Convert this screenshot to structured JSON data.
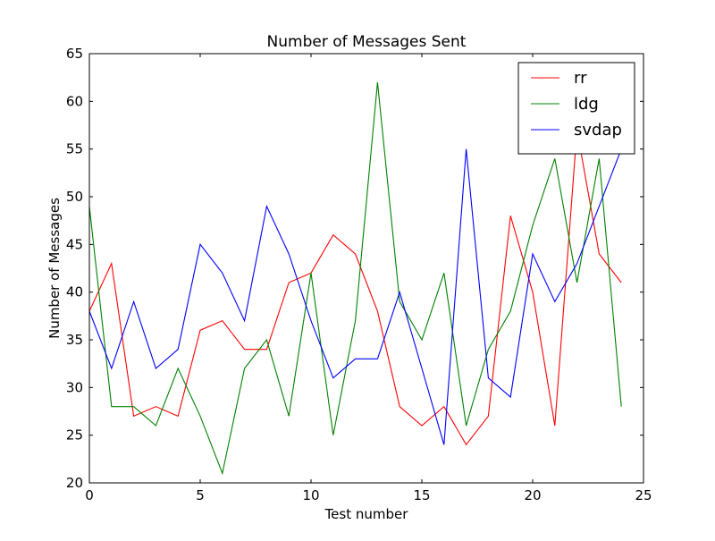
{
  "chart_data": {
    "type": "line",
    "title": "Number of Messages Sent",
    "xlabel": "Test number",
    "ylabel": "Number of Messages",
    "xlim": [
      0,
      25
    ],
    "ylim": [
      20,
      65
    ],
    "xticks": [
      "0",
      "5",
      "10",
      "15",
      "20",
      "25"
    ],
    "yticks": [
      "20",
      "25",
      "30",
      "35",
      "40",
      "45",
      "50",
      "55",
      "60",
      "65"
    ],
    "grid": false,
    "legend_position": "top-right",
    "x": [
      0,
      1,
      2,
      3,
      4,
      5,
      6,
      7,
      8,
      9,
      10,
      11,
      12,
      13,
      14,
      15,
      16,
      17,
      18,
      19,
      20,
      21,
      22,
      23,
      24
    ],
    "series": [
      {
        "name": "rr",
        "color": "#ff0000",
        "values": [
          38,
          43,
          27,
          28,
          27,
          36,
          37,
          34,
          34,
          41,
          42,
          46,
          44,
          38,
          28,
          26,
          28,
          24,
          27,
          48,
          40,
          26,
          57,
          44,
          41
        ]
      },
      {
        "name": "ldg",
        "color": "#008000",
        "values": [
          49,
          28,
          28,
          26,
          32,
          27,
          21,
          32,
          35,
          27,
          42,
          25,
          37,
          62,
          39,
          35,
          42,
          26,
          34,
          38,
          47,
          54,
          41,
          54,
          28
        ]
      },
      {
        "name": "svdap",
        "color": "#0000ff",
        "values": [
          38,
          32,
          39,
          32,
          34,
          45,
          42,
          37,
          49,
          44,
          37,
          31,
          33,
          33,
          40,
          32,
          24,
          55,
          31,
          29,
          44,
          39,
          43,
          49,
          55
        ]
      }
    ]
  }
}
